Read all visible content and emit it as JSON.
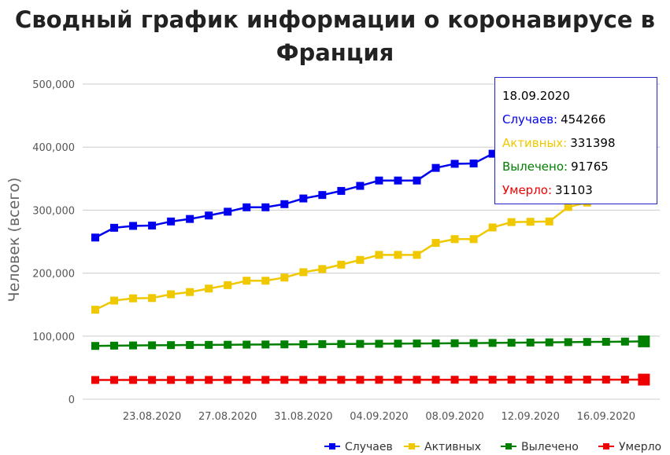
{
  "title": {
    "bold": "Сводный график",
    "rest_line1": "информации о коронавирусе в",
    "rest_line2": "Франция"
  },
  "chart_data": {
    "type": "line",
    "ylabel": "Человек (всего)",
    "ylim": [
      0,
      500000
    ],
    "yticks": [
      "0",
      "100,000",
      "200,000",
      "300,000",
      "400,000",
      "500,000"
    ],
    "ytick_values": [
      0,
      100000,
      200000,
      300000,
      400000,
      500000
    ],
    "x": [
      "20.08.2020",
      "21.08.2020",
      "22.08.2020",
      "23.08.2020",
      "24.08.2020",
      "25.08.2020",
      "26.08.2020",
      "27.08.2020",
      "28.08.2020",
      "29.08.2020",
      "30.08.2020",
      "31.08.2020",
      "01.09.2020",
      "02.09.2020",
      "03.09.2020",
      "04.09.2020",
      "05.09.2020",
      "06.09.2020",
      "07.09.2020",
      "08.09.2020",
      "09.09.2020",
      "10.09.2020",
      "11.09.2020",
      "12.09.2020",
      "13.09.2020",
      "14.09.2020",
      "15.09.2020",
      "16.09.2020",
      "17.09.2020",
      "18.09.2020"
    ],
    "xtick_labels": [
      "23.08.2020",
      "27.08.2020",
      "31.08.2020",
      "04.09.2020",
      "08.09.2020",
      "12.09.2020",
      "16.09.2020"
    ],
    "legend_position": "bottom-right",
    "grid": true,
    "series": [
      {
        "name": "Случаев",
        "color": "#0000ee",
        "values": [
          256500,
          272000,
          275000,
          275500,
          282000,
          286000,
          291500,
          297500,
          304500,
          304500,
          309500,
          318500,
          324000,
          330500,
          338500,
          347000,
          347000,
          347000,
          367000,
          373500,
          374000,
          389500,
          397000,
          405000,
          412000,
          425000,
          430000,
          444000,
          452000,
          454266
        ]
      },
      {
        "name": "Активных",
        "color": "#f0c800",
        "values": [
          142000,
          156500,
          160000,
          160500,
          166500,
          170000,
          175500,
          181000,
          188000,
          188000,
          193000,
          201500,
          206500,
          213500,
          221000,
          229000,
          229000,
          229000,
          248000,
          254000,
          254000,
          272500,
          281000,
          281500,
          282000,
          305000,
          312000,
          320000,
          328000,
          331398
        ]
      },
      {
        "name": "Вылечено",
        "color": "#008000",
        "values": [
          84500,
          85000,
          85300,
          85500,
          85800,
          86000,
          86200,
          86400,
          86600,
          86800,
          87000,
          87200,
          87400,
          87600,
          87800,
          88000,
          88200,
          88400,
          88600,
          88800,
          89000,
          89300,
          89600,
          89900,
          90200,
          90500,
          90800,
          91100,
          91400,
          91765
        ]
      },
      {
        "name": "Умерло",
        "color": "#ee0000",
        "values": [
          30500,
          30520,
          30540,
          30560,
          30580,
          30600,
          30620,
          30640,
          30660,
          30680,
          30700,
          30720,
          30740,
          30760,
          30780,
          30800,
          30820,
          30840,
          30860,
          30880,
          30900,
          30920,
          30940,
          30960,
          30980,
          31000,
          31020,
          31050,
          31080,
          31103
        ]
      }
    ]
  },
  "tooltip": {
    "date": "18.09.2020",
    "rows": [
      {
        "label": "Случаев:",
        "value": "454266",
        "color": "#0000ee"
      },
      {
        "label": "Активных:",
        "value": "331398",
        "color": "#f0c800"
      },
      {
        "label": "Вылечено:",
        "value": "91765",
        "color": "#008000"
      },
      {
        "label": "Умерло:",
        "value": "31103",
        "color": "#ee0000"
      }
    ]
  }
}
